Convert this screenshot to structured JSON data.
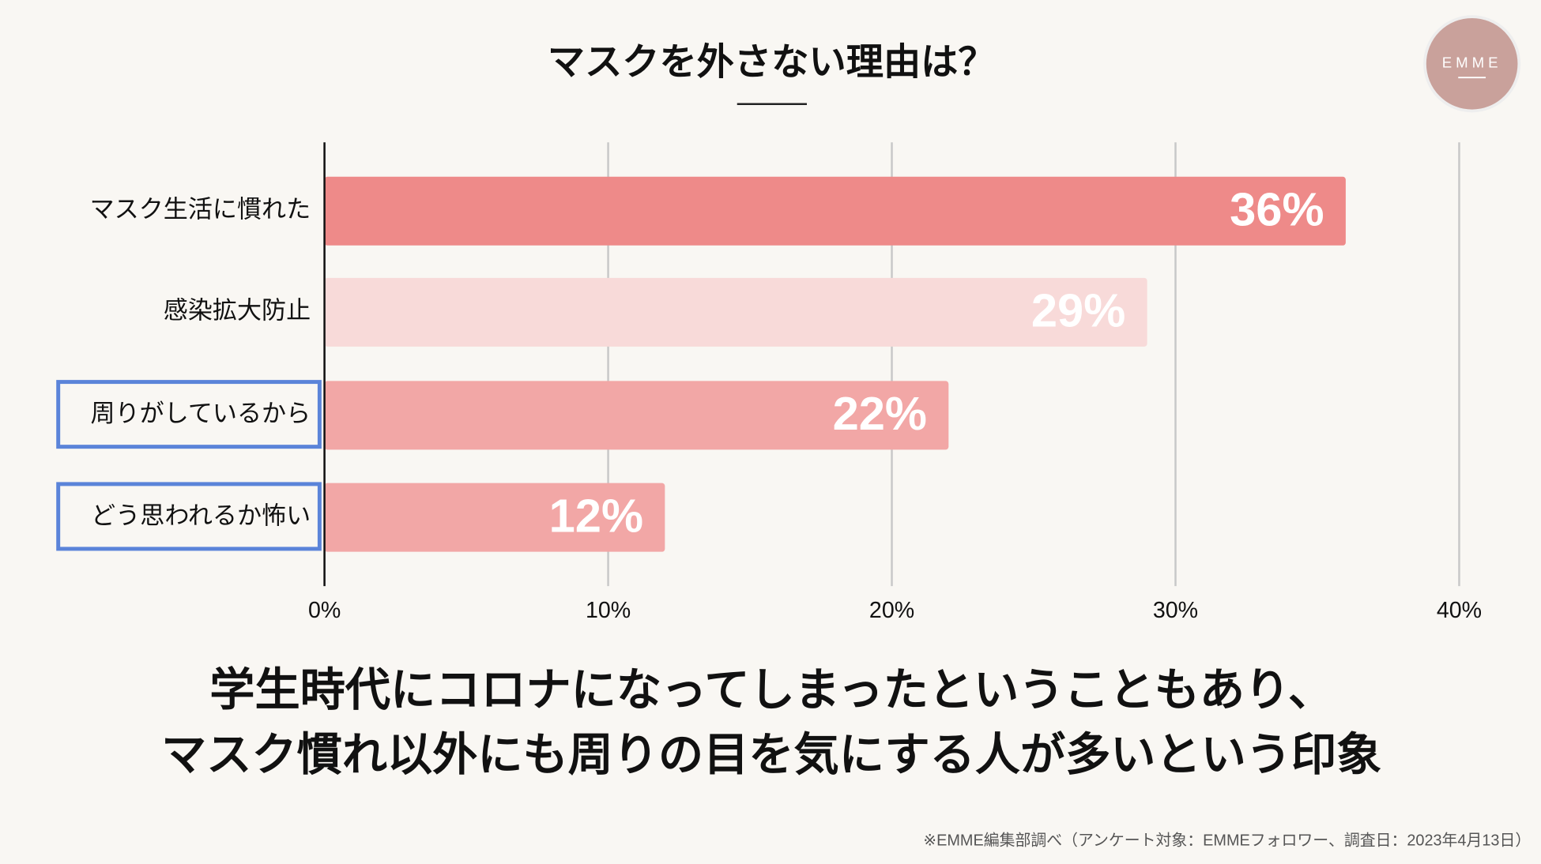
{
  "chart_data": {
    "type": "bar",
    "orientation": "horizontal",
    "title": "マスクを外さない理由は？",
    "categories": [
      "マスク生活に慣れた",
      "感染拡大防止",
      "周りがしているから",
      "どう思われるか怖い"
    ],
    "values": [
      36,
      29,
      22,
      12
    ],
    "value_labels": [
      "36%",
      "29%",
      "22%",
      "12%"
    ],
    "colors": [
      "#ee8a89",
      "#f8dad9",
      "#f2a7a6",
      "#f2a7a6"
    ],
    "highlighted": [
      false,
      false,
      true,
      true
    ],
    "highlight_color": "#5b84d9",
    "xlim": [
      0,
      40
    ],
    "xticks": [
      {
        "value": 0,
        "label": "0%"
      },
      {
        "value": 10,
        "label": "10%"
      },
      {
        "value": 20,
        "label": "20%"
      },
      {
        "value": 30,
        "label": "30%"
      },
      {
        "value": 40,
        "label": "40%"
      }
    ],
    "grid": true
  },
  "annotations": [
    "学生時代にコロナになってしまったということもあり、",
    "マスク慣れ以外にも周りの目を気にする人が多いという印象"
  ],
  "logo": "EMME",
  "note": "※EMME編集部調べ（アンケート対象：EMMEフォロワー、調査日：2023年4月13日）"
}
